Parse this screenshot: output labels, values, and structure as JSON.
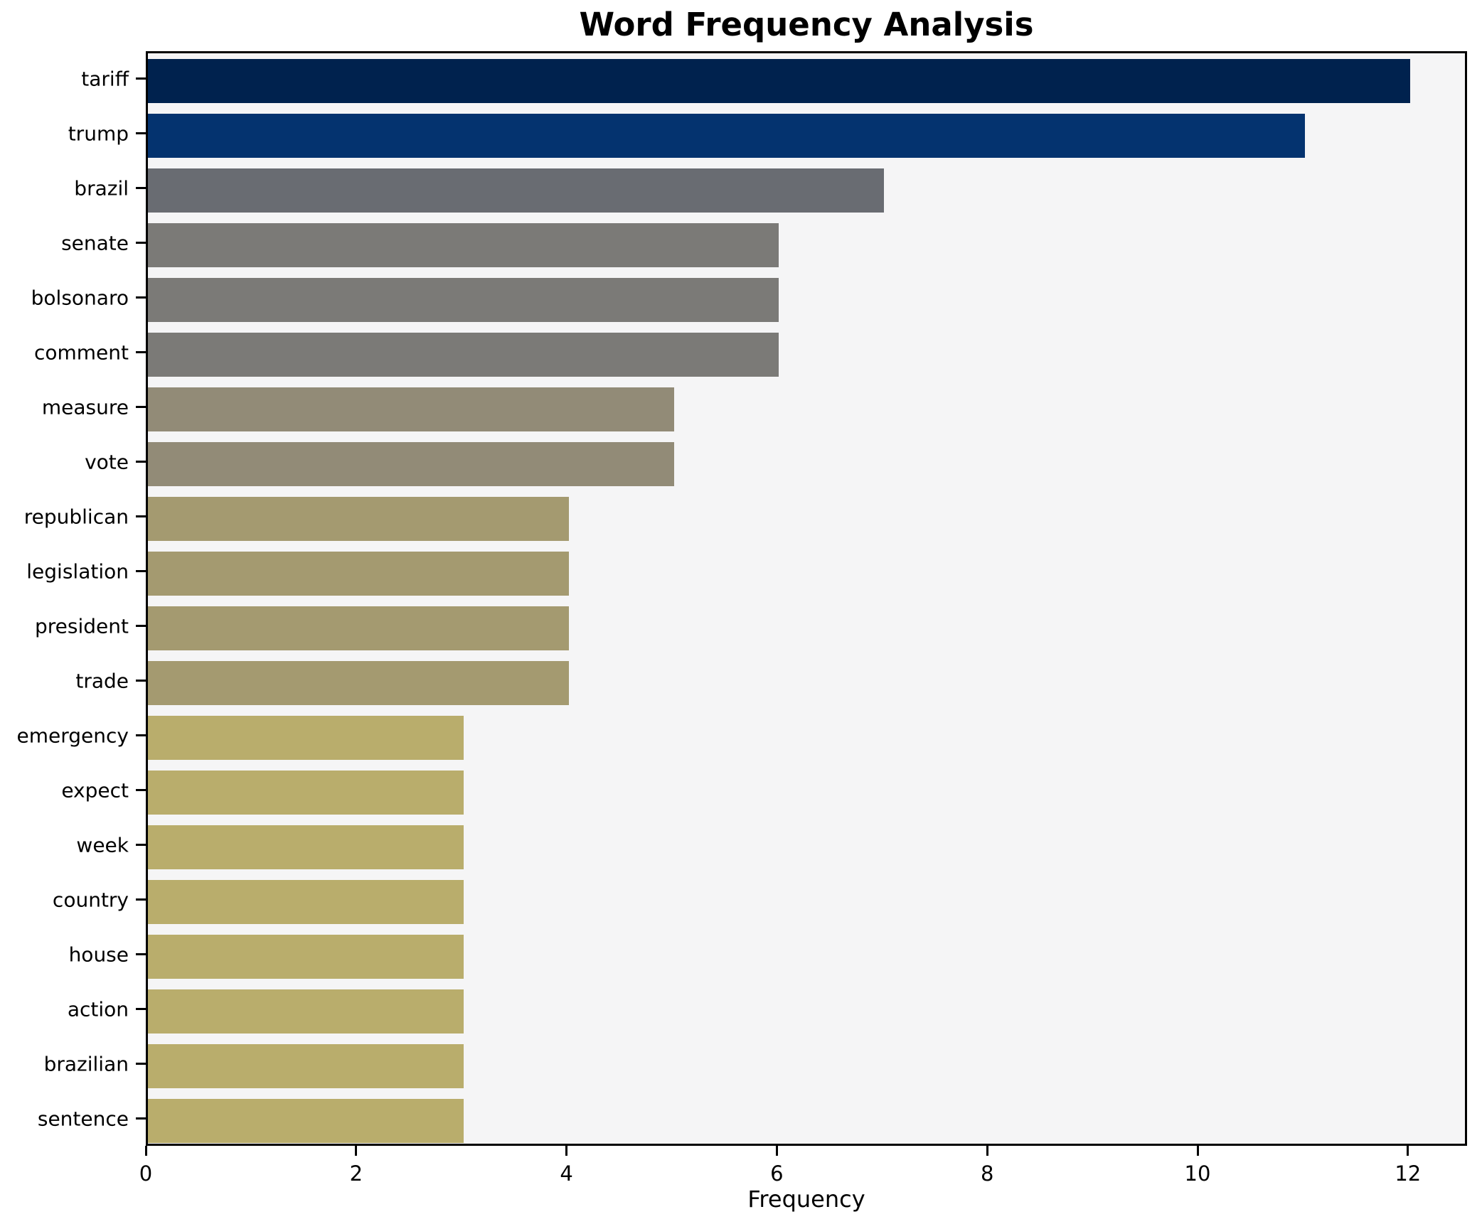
{
  "chart_data": {
    "type": "bar",
    "orientation": "horizontal",
    "title": "Word Frequency Analysis",
    "xlabel": "Frequency",
    "ylabel": "",
    "categories": [
      "tariff",
      "trump",
      "brazil",
      "senate",
      "bolsonaro",
      "comment",
      "measure",
      "vote",
      "republican",
      "legislation",
      "president",
      "trade",
      "emergency",
      "expect",
      "week",
      "country",
      "house",
      "action",
      "brazilian",
      "sentence"
    ],
    "values": [
      12,
      11,
      7,
      6,
      6,
      6,
      5,
      5,
      4,
      4,
      4,
      4,
      3,
      3,
      3,
      3,
      3,
      3,
      3,
      3
    ],
    "bar_colors": [
      "#00224e",
      "#04336f",
      "#696c72",
      "#7b7a77",
      "#7b7a77",
      "#7b7a77",
      "#928b77",
      "#928b77",
      "#a49a70",
      "#a49a70",
      "#a49a70",
      "#a49a70",
      "#b9ad6c",
      "#b9ad6c",
      "#b9ad6c",
      "#b9ad6c",
      "#b9ad6c",
      "#b9ad6c",
      "#b9ad6c",
      "#b9ad6c"
    ],
    "xlim": [
      0,
      12.56
    ],
    "xticks": [
      0,
      2,
      4,
      6,
      8,
      10,
      12
    ],
    "grid": false,
    "legend": false,
    "plot_background": "#f5f5f6",
    "figure_background": "#ffffff",
    "axis_color": "#000000"
  }
}
